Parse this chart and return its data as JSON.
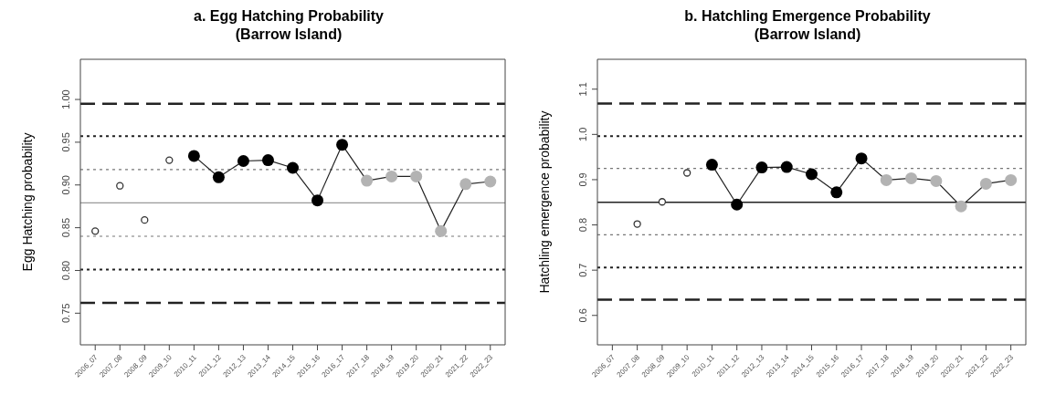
{
  "chart_data": [
    {
      "type": "line",
      "title": "a. Egg Hatching Probability\n(Barrow Island)",
      "ylabel": "Egg Hatching probability",
      "categories": [
        "2006_07",
        "2007_08",
        "2008_09",
        "2009_10",
        "2010_11",
        "2011_12",
        "2012_13",
        "2013_14",
        "2014_15",
        "2015_16",
        "2016_17",
        "2017_18",
        "2018_19",
        "2019_20",
        "2020_21",
        "2021_22",
        "2022_23"
      ],
      "series": [
        {
          "type": "scatter",
          "marker": "circle",
          "color": "#333333",
          "values": [
            0.846,
            0.899,
            0.859,
            0.929,
            null,
            null,
            null,
            null,
            null,
            null,
            null,
            null,
            null,
            null,
            null,
            null,
            null
          ]
        },
        {
          "marker": "circle",
          "color": "#222222",
          "colors": [
            null,
            null,
            null,
            null,
            "#000000",
            "#000000",
            "#000000",
            "#000000",
            "#000000",
            "#000000",
            "#000000",
            "#b3b3b3",
            "#b3b3b3",
            "#b3b3b3",
            "#b3b3b3",
            "#b3b3b3",
            "#b3b3b3"
          ],
          "values": [
            null,
            null,
            null,
            null,
            0.934,
            0.909,
            0.928,
            0.929,
            0.92,
            0.882,
            0.947,
            0.905,
            0.91,
            0.91,
            0.846,
            0.901,
            0.904
          ]
        }
      ],
      "ylim": [
        0.713,
        1.047
      ],
      "yticks": [
        0.75,
        {
          "value": 0.8,
          "label": "0.80"
        },
        0.85,
        {
          "value": 0.9,
          "label": "0.90"
        },
        0.95,
        {
          "value": 1,
          "label": "1.00"
        }
      ],
      "ref_lines": [
        {
          "axis": "y",
          "value": 0.995,
          "color": "#222222",
          "line_style": "dashed"
        },
        {
          "axis": "y",
          "value": 0.957,
          "color": "#222222",
          "line_style": "dotted"
        },
        {
          "axis": "y",
          "value": 0.918,
          "color": "#777777",
          "line_style": "dotted"
        },
        {
          "axis": "y",
          "value": 0.879,
          "color": "#999999",
          "line_style": "solid"
        },
        {
          "axis": "y",
          "value": 0.84,
          "color": "#777777",
          "line_style": "dotted"
        },
        {
          "axis": "y",
          "value": 0.801,
          "color": "#222222",
          "line_style": "dotted"
        },
        {
          "axis": "y",
          "value": 0.762,
          "color": "#222222",
          "line_style": "dashed"
        }
      ]
    },
    {
      "type": "line",
      "title": "b. Hatchling Emergence Probability\n(Barrow Island)",
      "ylabel": "Hatchling emergence probability",
      "categories": [
        "2006_07",
        "2007_08",
        "2008_09",
        "2009_10",
        "2010_11",
        "2011_12",
        "2012_13",
        "2013_14",
        "2014_15",
        "2015_16",
        "2016_17",
        "2017_18",
        "2018_19",
        "2019_20",
        "2020_21",
        "2021_22",
        "2022_23"
      ],
      "series": [
        {
          "type": "scatter",
          "marker": "circle",
          "color": "#333333",
          "values": [
            null,
            0.802,
            0.851,
            0.915,
            null,
            null,
            null,
            null,
            null,
            null,
            null,
            null,
            null,
            null,
            null,
            null,
            null
          ]
        },
        {
          "marker": "circle",
          "color": "#222222",
          "colors": [
            null,
            null,
            null,
            null,
            "#000000",
            "#000000",
            "#000000",
            "#000000",
            "#000000",
            "#000000",
            "#000000",
            "#b3b3b3",
            "#b3b3b3",
            "#b3b3b3",
            "#b3b3b3",
            "#b3b3b3",
            "#b3b3b3"
          ],
          "values": [
            null,
            null,
            null,
            null,
            0.933,
            0.845,
            0.927,
            0.928,
            0.912,
            0.872,
            0.947,
            0.899,
            0.903,
            0.897,
            0.841,
            0.891,
            0.899
          ]
        }
      ],
      "ylim": [
        0.535,
        1.166
      ],
      "yticks": [
        0.6,
        0.7,
        0.8,
        0.9,
        {
          "value": 1,
          "label": "1.0"
        },
        1.1
      ],
      "ref_lines": [
        {
          "axis": "y",
          "value": 1.068,
          "color": "#222222",
          "line_style": "dashed"
        },
        {
          "axis": "y",
          "value": 0.996,
          "color": "#222222",
          "line_style": "dotted"
        },
        {
          "axis": "y",
          "value": 0.925,
          "color": "#777777",
          "line_style": "dotted"
        },
        {
          "axis": "y",
          "value": 0.85,
          "color": "#222222",
          "line_style": "solid"
        },
        {
          "axis": "y",
          "value": 0.778,
          "color": "#777777",
          "line_style": "dotted"
        },
        {
          "axis": "y",
          "value": 0.706,
          "color": "#222222",
          "line_style": "dotted"
        },
        {
          "axis": "y",
          "value": 0.635,
          "color": "#222222",
          "line_style": "dashed"
        }
      ]
    }
  ]
}
